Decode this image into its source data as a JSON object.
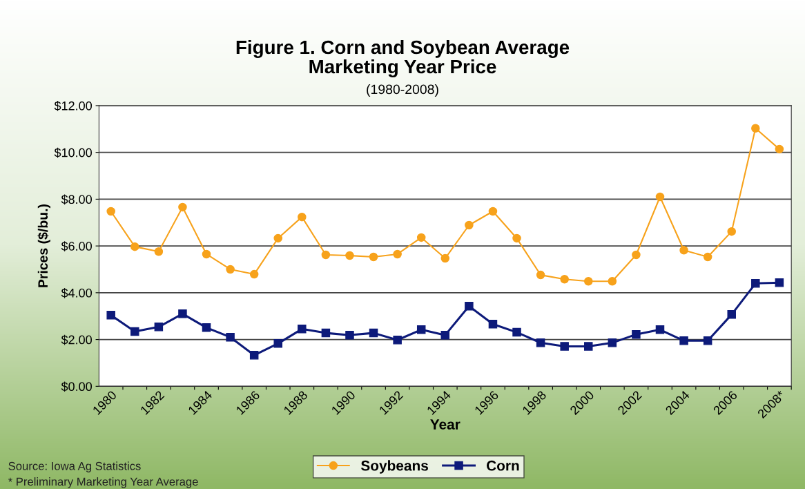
{
  "chart_data": {
    "type": "line",
    "title": "Figure 1. Corn and Soybean Average\nMarketing Year Price",
    "subtitle": "(1980-2008)",
    "xlabel": "Year",
    "ylabel": "Prices ($/bu.)",
    "categories": [
      "1980",
      null,
      "1982",
      null,
      "1984",
      null,
      "1986",
      null,
      "1988",
      null,
      "1990",
      null,
      "1992",
      null,
      "1994",
      null,
      "1996",
      null,
      "1998",
      null,
      "2000",
      null,
      "2002",
      null,
      "2004",
      null,
      "2006",
      null,
      "2008*"
    ],
    "series": [
      {
        "name": "Soybeans",
        "color": "#f7a21b",
        "marker": "circle",
        "values": [
          7.48,
          5.97,
          5.76,
          7.66,
          5.65,
          5.0,
          4.79,
          6.33,
          7.24,
          5.62,
          5.59,
          5.53,
          5.65,
          6.36,
          5.47,
          6.89,
          7.48,
          6.33,
          4.76,
          4.58,
          4.49,
          4.49,
          5.62,
          8.1,
          5.82,
          5.53,
          6.62,
          11.03,
          10.14
        ]
      },
      {
        "name": "Corn",
        "color": "#0d1a7a",
        "marker": "square",
        "values": [
          3.04,
          2.34,
          2.54,
          3.1,
          2.51,
          2.1,
          1.33,
          1.83,
          2.45,
          2.28,
          2.19,
          2.28,
          1.98,
          2.42,
          2.19,
          3.43,
          2.66,
          2.31,
          1.86,
          1.71,
          1.71,
          1.86,
          2.22,
          2.42,
          1.95,
          1.95,
          3.07,
          4.4,
          4.43
        ]
      }
    ],
    "ylim": [
      0,
      12
    ],
    "yticks": [
      {
        "value": 0,
        "label": "$0.00"
      },
      {
        "value": 2,
        "label": "$2.00"
      },
      {
        "value": 4,
        "label": "$4.00"
      },
      {
        "value": 6,
        "label": "$6.00"
      },
      {
        "value": 8,
        "label": "$8.00"
      },
      {
        "value": 10,
        "label": "$10.00"
      },
      {
        "value": 12,
        "label": "$12.00"
      }
    ],
    "grid": "y",
    "legend": "bottom",
    "annotations": [
      "Source: Iowa Ag Statistics",
      "* Preliminary Marketing Year Average"
    ]
  }
}
